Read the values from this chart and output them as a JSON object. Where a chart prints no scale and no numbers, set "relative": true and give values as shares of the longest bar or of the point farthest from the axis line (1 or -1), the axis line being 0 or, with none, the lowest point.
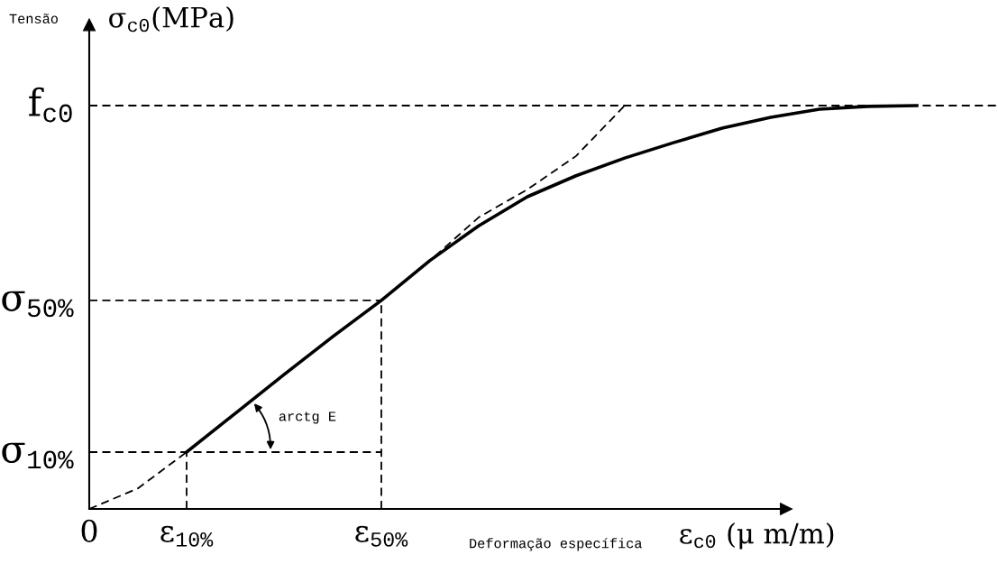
{
  "chart_data": {
    "type": "line",
    "relative": true,
    "categories": [
      "0",
      null,
      "ε$_{10%}$",
      null,
      null,
      null,
      "ε$_{50%}$",
      null,
      null,
      null,
      null,
      null,
      null,
      null,
      null,
      null,
      null,
      null
    ],
    "xlabel": "Deformação específica",
    "annotations": [
      "σ$_{c0}$(MPa)",
      "ε$_{c0}$ (μ m/m)",
      "arctg E",
      "Tensão"
    ],
    "series": [
      {
        "color": "#000000",
        "line_style": "solid",
        "values": [
          null,
          null,
          0.141,
          0.237,
          0.333,
          0.427,
          0.517,
          0.616,
          0.702,
          0.774,
          0.826,
          0.87,
          0.908,
          0.944,
          0.971,
          0.991,
          0.998,
          1.0
        ]
      },
      {
        "color": "#000000",
        "line_style": "dashed",
        "values": [
          0.0,
          0.051,
          0.141,
          0.237,
          0.333,
          0.427,
          0.517,
          0.616,
          0.723,
          0.792,
          0.875,
          1.0,
          null,
          null,
          null,
          null,
          null,
          null
        ]
      }
    ],
    "ref_lines": [
      {
        "axis": "y",
        "value": 0.141,
        "label": "σ$_{10%}$",
        "line_style": "dashed"
      },
      {
        "axis": "y",
        "value": 0.517,
        "label": "σ$_{50%}$",
        "line_style": "dashed"
      },
      {
        "axis": "y",
        "value": 1.0,
        "label": "f$_{c0}$",
        "line_style": "dashed"
      },
      {
        "axis": "x",
        "value": "ε$_{10%}$",
        "line_style": "dashed"
      },
      {
        "axis": "x",
        "value": "ε$_{50%}$",
        "line_style": "dashed"
      }
    ],
    "legend": false
  }
}
